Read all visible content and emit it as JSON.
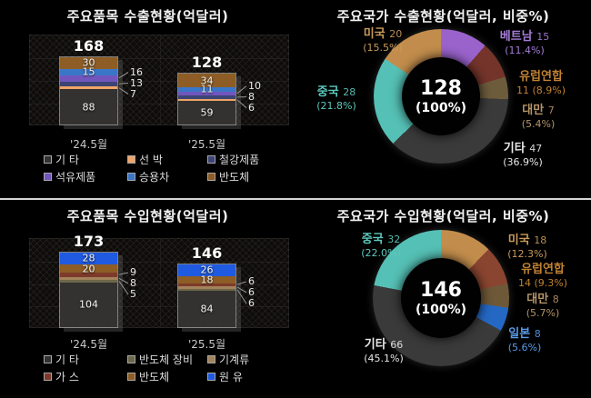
{
  "page": {
    "background": "#000000",
    "divider_color": "#d6d6d6"
  },
  "chart_data": [
    {
      "id": "export-items",
      "type": "bar",
      "stacked": true,
      "title": "주요품목 수출현황(억달러)",
      "categories": [
        "'24.5월",
        "'25.5월"
      ],
      "totals": [
        168,
        128
      ],
      "grid": true,
      "legend_position": "bottom",
      "series": [
        {
          "name": "기 타",
          "color": "#343230",
          "values": [
            88,
            59
          ],
          "label": "inside"
        },
        {
          "name": "선 박",
          "color": "#f0a468",
          "values": [
            7,
            6
          ],
          "label": "callout"
        },
        {
          "name": "철강제품",
          "color": "#3c4474",
          "values": [
            13,
            8
          ],
          "label": "callout"
        },
        {
          "name": "석유제품",
          "color": "#7156bd",
          "values": [
            16,
            10
          ],
          "label": "callout"
        },
        {
          "name": "승용차",
          "color": "#3a76c8",
          "values": [
            15,
            11
          ],
          "label": "inside"
        },
        {
          "name": "반도체",
          "color": "#8d5d25",
          "values": [
            30,
            34
          ],
          "label": "inside"
        }
      ]
    },
    {
      "id": "export-countries",
      "type": "pie",
      "donut": true,
      "title": "주요국가 수출현황(억달러, 비중%)",
      "center": {
        "value": "128",
        "pct": "(100%)"
      },
      "slices": [
        {
          "name": "베트남",
          "value": 15,
          "pct": "11.4",
          "color": "#9a63cc",
          "label_color": "#a57cd8",
          "slot": "top-right"
        },
        {
          "name": "유럽연합",
          "value": 11,
          "pct": "8.9",
          "color": "#74342a",
          "label_color": "#c08132",
          "slot": "right-upper",
          "two_line": true
        },
        {
          "name": "대만",
          "value": 7,
          "pct": "5.4",
          "color": "#6d5c3c",
          "label_color": "#b49468",
          "slot": "right-lower"
        },
        {
          "name": "기타",
          "value": 47,
          "pct": "36.9",
          "color": "#3a3a3a",
          "label_color": "#e8e8e8",
          "slot": "bottom-right"
        },
        {
          "name": "중국",
          "value": 28,
          "pct": "21.8",
          "color": "#55c0b5",
          "label_color": "#5cc8bd",
          "slot": "left"
        },
        {
          "name": "미국",
          "value": 20,
          "pct": "15.5",
          "color": "#c28d4c",
          "label_color": "#c89a58",
          "slot": "top-left"
        }
      ]
    },
    {
      "id": "import-items",
      "type": "bar",
      "stacked": true,
      "title": "주요품목 수입현황(억달러)",
      "categories": [
        "'24.5월",
        "'25.5월"
      ],
      "totals": [
        173,
        146
      ],
      "grid": true,
      "legend_position": "bottom",
      "series": [
        {
          "name": "기 타",
          "color": "#343230",
          "values": [
            104,
            84
          ],
          "label": "inside"
        },
        {
          "name": "반도체 장비",
          "color": "#6d674a",
          "values": [
            5,
            6
          ],
          "label": "callout"
        },
        {
          "name": "기계류",
          "color": "#a3835c",
          "values": [
            8,
            6
          ],
          "label": "callout"
        },
        {
          "name": "가 스",
          "color": "#7d3a2a",
          "values": [
            9,
            6
          ],
          "label": "callout"
        },
        {
          "name": "반도체",
          "color": "#8d5d25",
          "values": [
            20,
            18
          ],
          "label": "inside"
        },
        {
          "name": "원 유",
          "color": "#1f5ae0",
          "values": [
            28,
            26
          ],
          "label": "inside"
        }
      ]
    },
    {
      "id": "import-countries",
      "type": "pie",
      "donut": true,
      "title": "주요국가 수입현황(억달러, 비중%)",
      "center": {
        "value": "146",
        "pct": "(100%)"
      },
      "slices": [
        {
          "name": "미국",
          "value": 18,
          "pct": "12.3",
          "color": "#c28d4c",
          "label_color": "#c89a58",
          "slot": "top-right"
        },
        {
          "name": "유럽연합",
          "value": 14,
          "pct": "9.3",
          "color": "#8a4530",
          "label_color": "#c08132",
          "slot": "right-upper",
          "two_line": true
        },
        {
          "name": "대만",
          "value": 8,
          "pct": "5.7",
          "color": "#6d5838",
          "label_color": "#b49468",
          "slot": "right-lower"
        },
        {
          "name": "일본",
          "value": 8,
          "pct": "5.6",
          "color": "#2468c4",
          "label_color": "#5a9ae8",
          "slot": "right-bottom"
        },
        {
          "name": "기타",
          "value": 66,
          "pct": "45.1",
          "color": "#3a3a3a",
          "label_color": "#e8e8e8",
          "slot": "bottom-left"
        },
        {
          "name": "중국",
          "value": 32,
          "pct": "22.0",
          "color": "#55c0b5",
          "label_color": "#5cc8bd",
          "slot": "top-left"
        }
      ]
    }
  ]
}
